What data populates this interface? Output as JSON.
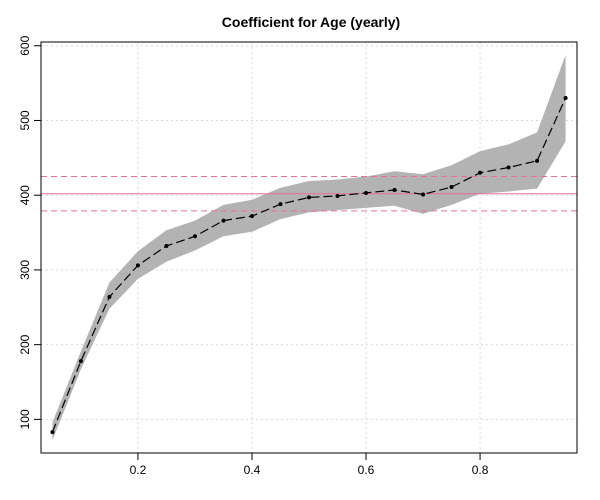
{
  "chart_data": {
    "type": "line",
    "title": "Coefficient for Age (yearly)",
    "xlabel": "",
    "ylabel": "",
    "xlim": [
      0.03,
      0.97
    ],
    "ylim": [
      55,
      605
    ],
    "x_ticks": [
      0.2,
      0.4,
      0.6,
      0.8
    ],
    "y_ticks": [
      100,
      200,
      300,
      400,
      500,
      600
    ],
    "grid": true,
    "x": [
      0.05,
      0.1,
      0.15,
      0.2,
      0.25,
      0.3,
      0.35,
      0.4,
      0.45,
      0.5,
      0.55,
      0.6,
      0.65,
      0.7,
      0.75,
      0.8,
      0.85,
      0.9,
      0.95
    ],
    "series": [
      {
        "values": [
          83,
          178,
          264,
          306,
          332,
          345,
          366,
          372,
          388,
          397,
          399,
          403,
          407,
          401,
          411,
          430,
          437,
          446,
          530
        ],
        "lower": [
          72,
          167,
          248,
          288,
          311,
          326,
          345,
          351,
          368,
          377,
          380,
          383,
          386,
          375,
          387,
          402,
          405,
          409,
          472
        ],
        "upper": [
          96,
          191,
          283,
          325,
          353,
          366,
          387,
          394,
          410,
          419,
          421,
          425,
          432,
          428,
          440,
          459,
          468,
          484,
          588
        ]
      }
    ],
    "reference_lines": {
      "estimate": 402,
      "lower": 379,
      "upper": 425,
      "color": "#e5709a"
    },
    "colors": {
      "band": "#b3b3b3",
      "line": "#000000",
      "grid": "#d9d9d9"
    }
  }
}
